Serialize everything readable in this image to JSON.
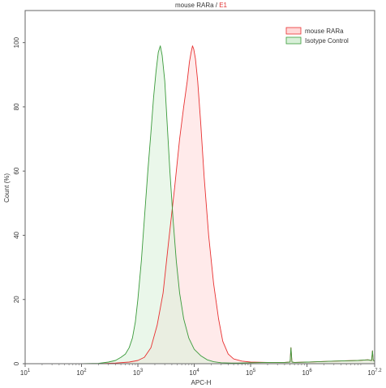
{
  "chart_data": {
    "type": "area",
    "title_main": "mouse RARa",
    "title_sep": " / ",
    "title_gate": "E1",
    "xlabel": "APC-H",
    "ylabel": "Count (%)",
    "x_scale": "log",
    "xlim": [
      10,
      15848932
    ],
    "ylim": [
      0,
      110
    ],
    "yticks": [
      0,
      20,
      40,
      60,
      80,
      100
    ],
    "xticks": [
      {
        "value": 10,
        "base": "10",
        "exp": "1"
      },
      {
        "value": 100,
        "base": "10",
        "exp": "2"
      },
      {
        "value": 1000,
        "base": "10",
        "exp": "3"
      },
      {
        "value": 10000,
        "base": "10",
        "exp": "4"
      },
      {
        "value": 100000,
        "base": "10",
        "exp": "5"
      },
      {
        "value": 1000000,
        "base": "10",
        "exp": "6"
      },
      {
        "value": 15848932,
        "base": "10",
        "exp": "7.2"
      }
    ],
    "grid": false,
    "legend_position": "top-right",
    "series": [
      {
        "name": "mouse RARa",
        "color": "#e83030",
        "fill": "#ffd8d8",
        "x": [
          200,
          400,
          700,
          1000,
          1300,
          1700,
          2200,
          2800,
          3500,
          4500,
          5500,
          6500,
          7500,
          8200,
          8800,
          9300,
          9800,
          10500,
          11500,
          13000,
          15000,
          18000,
          22000,
          27000,
          32000,
          40000,
          50000,
          70000,
          100000,
          200000,
          400000,
          500000,
          520000,
          540000,
          600000,
          1000000,
          3000000,
          8000000,
          12000000,
          14000000,
          14500000,
          15000000,
          15848932
        ],
        "y": [
          0,
          0.2,
          0.5,
          1,
          2,
          5,
          12,
          22,
          38,
          55,
          70,
          80,
          88,
          94,
          97,
          99,
          98,
          95,
          88,
          75,
          58,
          40,
          25,
          14,
          7,
          3,
          1.5,
          0.8,
          0.5,
          0.4,
          0.4,
          0.5,
          5,
          0.5,
          0.4,
          0.5,
          0.8,
          1,
          1.2,
          1,
          4,
          1,
          0.8
        ]
      },
      {
        "name": "Isotype Control",
        "color": "#3a9a3a",
        "fill": "#d8f0d8",
        "x": [
          100,
          200,
          300,
          400,
          500,
          600,
          700,
          800,
          900,
          1000,
          1150,
          1300,
          1500,
          1700,
          1900,
          2100,
          2300,
          2500,
          2700,
          3000,
          3300,
          3700,
          4200,
          4800,
          5500,
          6500,
          8000,
          10000,
          13000,
          17000,
          22000,
          30000,
          45000,
          60000,
          100000,
          200000,
          400000,
          500000,
          520000,
          540000,
          600000,
          1000000,
          3000000,
          8000000,
          12000000,
          14000000,
          14500000,
          15000000,
          15848932
        ],
        "y": [
          0,
          0.1,
          0.5,
          1,
          2,
          3,
          5,
          8,
          13,
          20,
          32,
          45,
          60,
          72,
          83,
          91,
          97,
          99,
          96,
          88,
          75,
          60,
          45,
          32,
          22,
          14,
          8,
          4.5,
          2.5,
          1.2,
          0.6,
          0.3,
          0.2,
          0.2,
          0.3,
          0.4,
          0.4,
          0.5,
          5,
          0.5,
          0.4,
          0.5,
          0.8,
          1,
          1.2,
          1,
          4,
          1,
          0.8
        ]
      }
    ]
  }
}
